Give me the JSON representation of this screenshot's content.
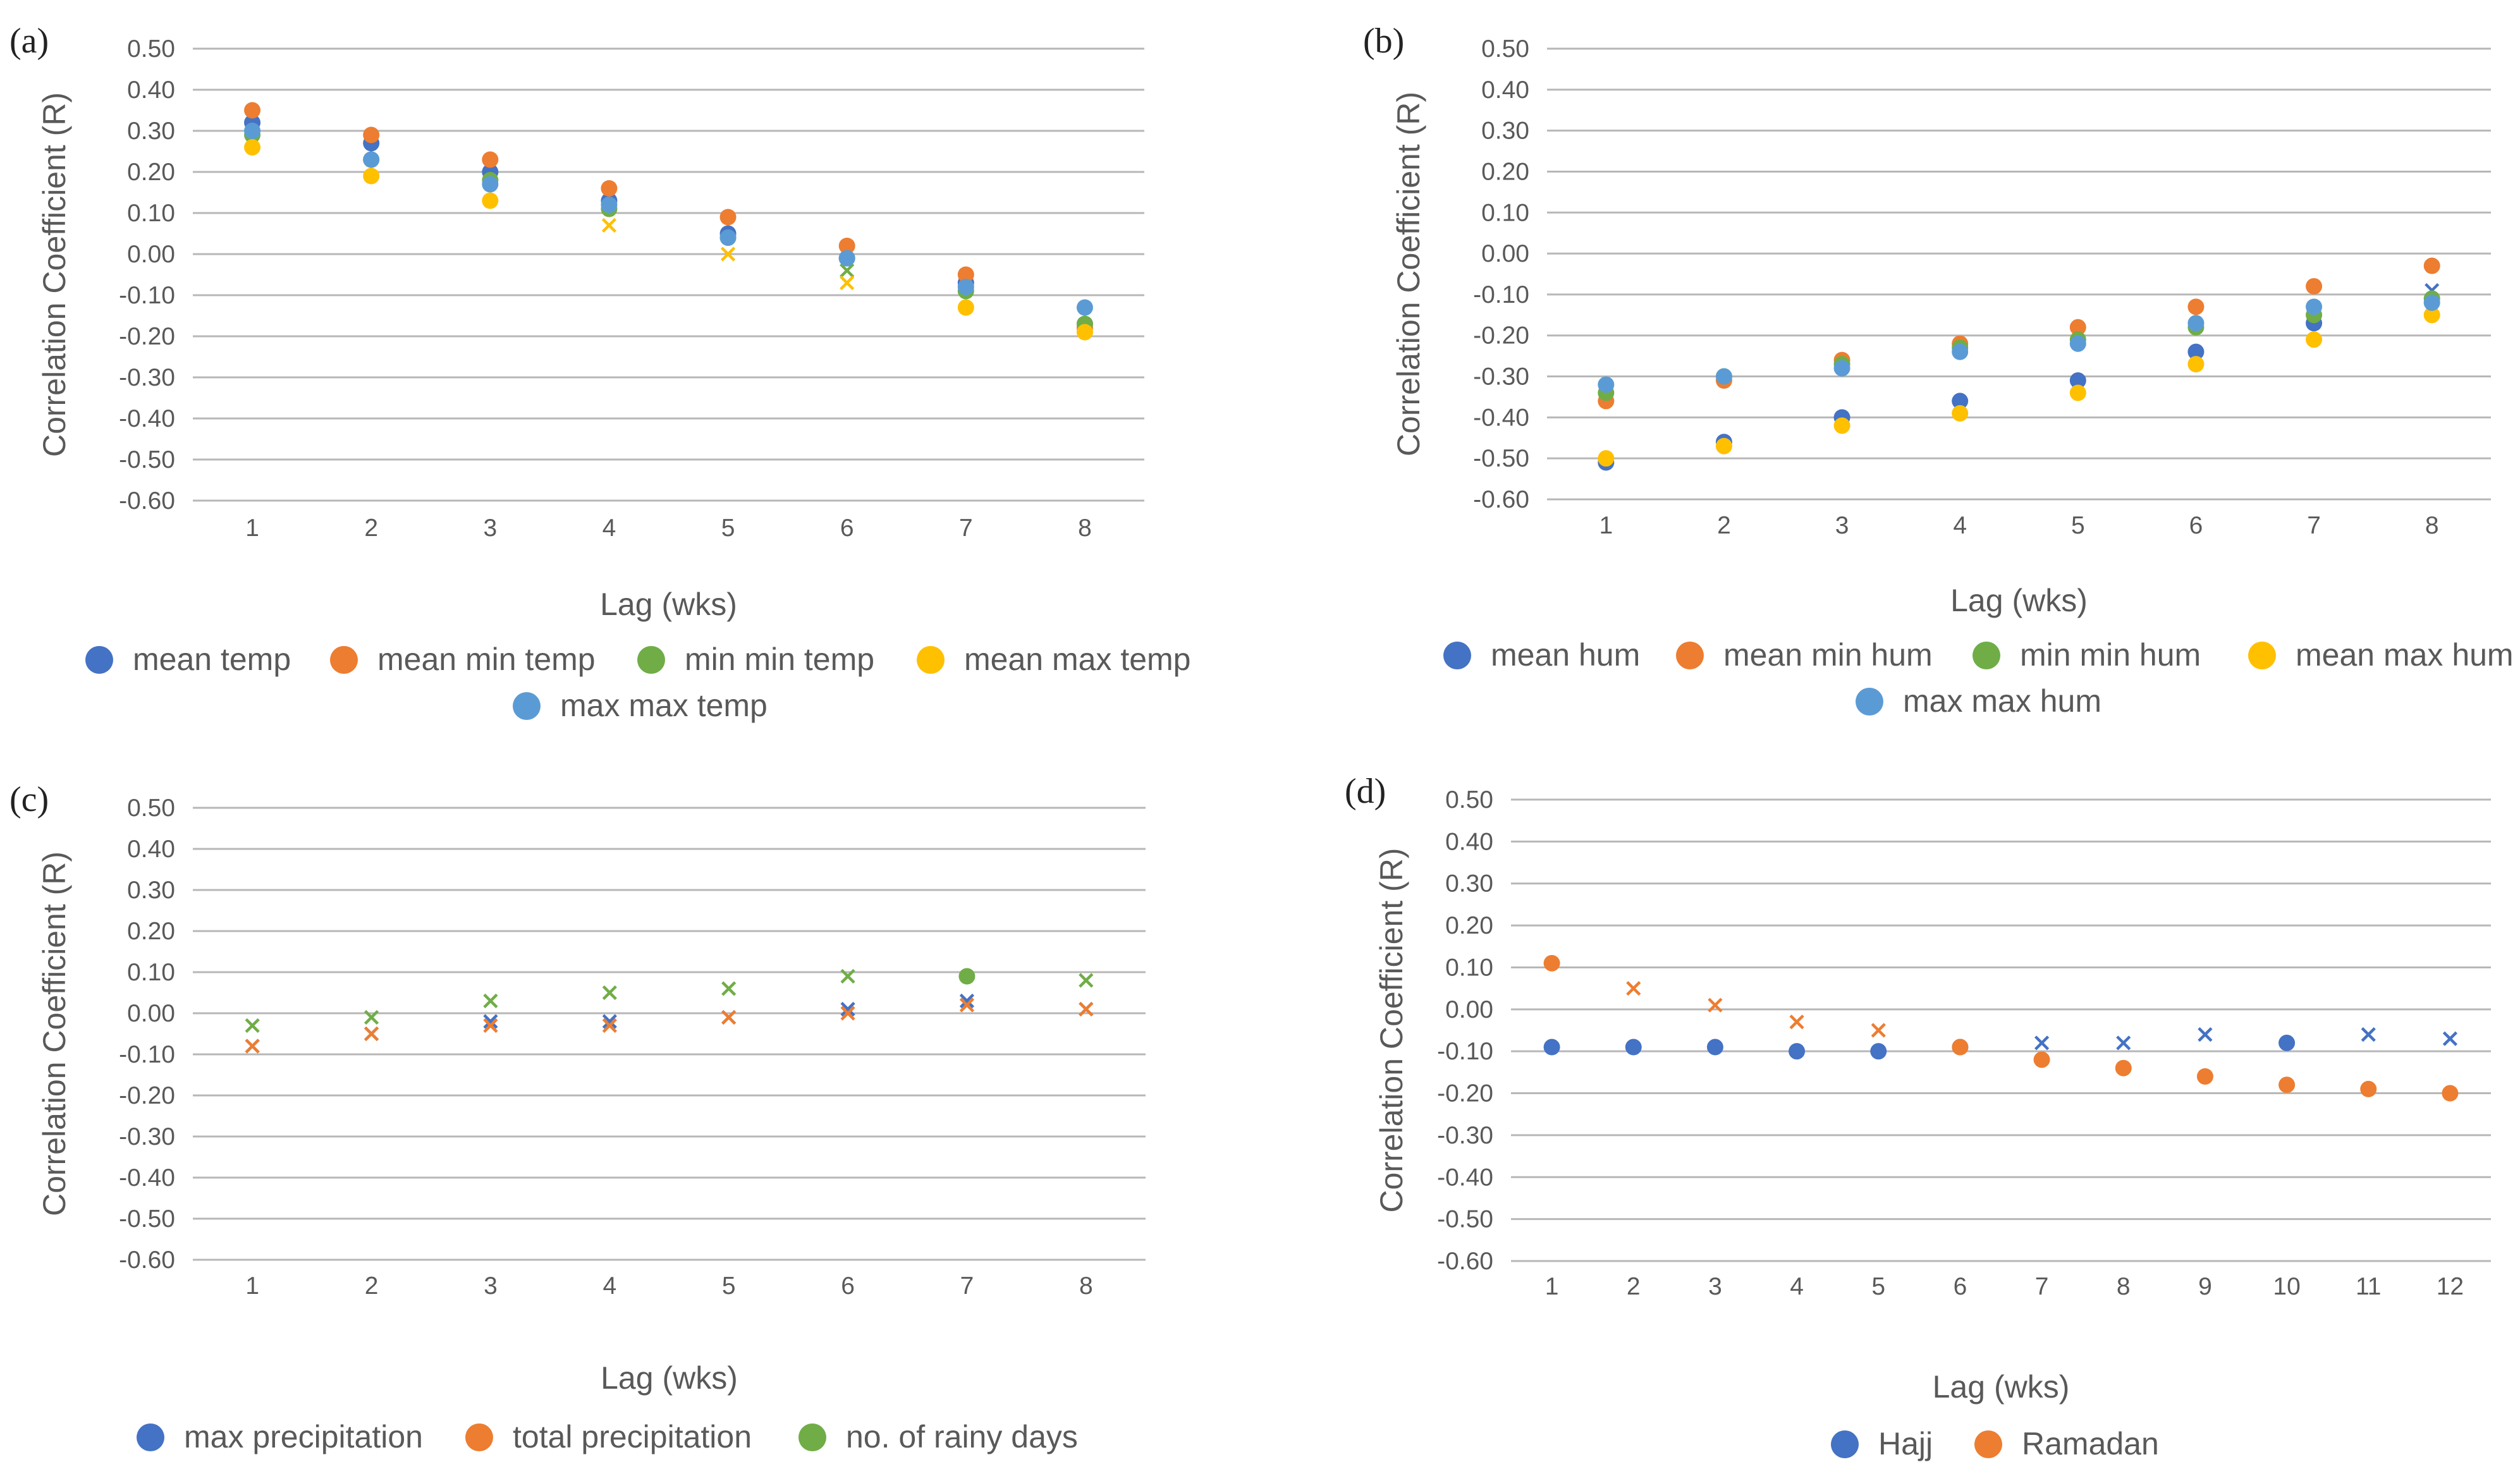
{
  "chart_data": [
    {
      "type": "scatter",
      "panel_label": "(a)",
      "xlabel": "Lag (wks)",
      "ylabel": "Correlation Coefficient (R)",
      "ylim": [
        -0.6,
        0.5
      ],
      "yticks": [
        "0.50",
        "0.40",
        "0.30",
        "0.20",
        "0.10",
        "0.00",
        "-0.10",
        "-0.20",
        "-0.30",
        "-0.40",
        "-0.50",
        "-0.60"
      ],
      "x": [
        1,
        2,
        3,
        4,
        5,
        6,
        7,
        8
      ],
      "series": [
        {
          "name": "mean temp",
          "color": "#4472c4",
          "values": [
            0.32,
            0.27,
            0.2,
            0.13,
            0.05,
            -0.01,
            -0.07,
            -0.17
          ],
          "markers": [
            "dot",
            "dot",
            "dot",
            "dot",
            "dot",
            "dot",
            "dot",
            "dot"
          ]
        },
        {
          "name": "mean min temp",
          "color": "#ed7d31",
          "values": [
            0.35,
            0.29,
            0.23,
            0.16,
            0.09,
            0.02,
            -0.05,
            -0.18
          ],
          "markers": [
            "dot",
            "dot",
            "dot",
            "dot",
            "dot",
            "dot",
            "dot",
            "dot"
          ]
        },
        {
          "name": "min min temp",
          "color": "#70ad47",
          "values": [
            0.29,
            0.23,
            0.18,
            0.11,
            0.04,
            -0.04,
            -0.09,
            -0.17
          ],
          "markers": [
            "dot",
            "dot",
            "dot",
            "dot",
            "dot",
            "cross",
            "dot",
            "dot"
          ]
        },
        {
          "name": "mean max temp",
          "color": "#ffc000",
          "values": [
            0.26,
            0.19,
            0.13,
            0.07,
            0.0,
            -0.07,
            -0.13,
            -0.19
          ],
          "markers": [
            "dot",
            "dot",
            "dot",
            "cross",
            "cross",
            "cross",
            "dot",
            "dot"
          ]
        },
        {
          "name": "max max temp",
          "color": "#5b9bd5",
          "values": [
            0.3,
            0.23,
            0.17,
            0.12,
            0.04,
            -0.01,
            -0.08,
            -0.13
          ],
          "markers": [
            "dot",
            "dot",
            "dot",
            "dot",
            "dot",
            "dot",
            "dot",
            "dot"
          ]
        }
      ]
    },
    {
      "type": "scatter",
      "panel_label": "(b)",
      "xlabel": "Lag (wks)",
      "ylabel": "Correlation Coefficient (R)",
      "ylim": [
        -0.6,
        0.5
      ],
      "yticks": [
        "0.50",
        "0.40",
        "0.30",
        "0.20",
        "0.10",
        "0.00",
        "-0.10",
        "-0.20",
        "-0.30",
        "-0.40",
        "-0.50",
        "-0.60"
      ],
      "x": [
        1,
        2,
        3,
        4,
        5,
        6,
        7,
        8
      ],
      "series": [
        {
          "name": "mean hum",
          "color": "#4472c4",
          "values": [
            -0.51,
            -0.46,
            -0.4,
            -0.36,
            -0.31,
            -0.24,
            -0.17,
            -0.09
          ],
          "markers": [
            "dot",
            "dot",
            "dot",
            "dot",
            "dot",
            "dot",
            "dot",
            "cross"
          ]
        },
        {
          "name": "mean min hum",
          "color": "#ed7d31",
          "values": [
            -0.36,
            -0.31,
            -0.26,
            -0.22,
            -0.18,
            -0.13,
            -0.08,
            -0.03
          ],
          "markers": [
            "dot",
            "dot",
            "dot",
            "dot",
            "dot",
            "dot",
            "dot",
            "dot"
          ]
        },
        {
          "name": "min min hum",
          "color": "#70ad47",
          "values": [
            -0.34,
            -0.3,
            -0.27,
            -0.23,
            -0.21,
            -0.18,
            -0.15,
            -0.11
          ],
          "markers": [
            "dot",
            "dot",
            "dot",
            "dot",
            "dot",
            "dot",
            "dot",
            "dot"
          ]
        },
        {
          "name": "mean max hum",
          "color": "#ffc000",
          "values": [
            -0.5,
            -0.47,
            -0.42,
            -0.39,
            -0.34,
            -0.27,
            -0.21,
            -0.15
          ],
          "markers": [
            "dot",
            "dot",
            "dot",
            "dot",
            "dot",
            "dot",
            "dot",
            "dot"
          ]
        },
        {
          "name": "max max hum",
          "color": "#5b9bd5",
          "values": [
            -0.32,
            -0.3,
            -0.28,
            -0.24,
            -0.22,
            -0.17,
            -0.13,
            -0.12
          ],
          "markers": [
            "dot",
            "dot",
            "dot",
            "dot",
            "dot",
            "dot",
            "dot",
            "dot"
          ]
        }
      ]
    },
    {
      "type": "scatter",
      "panel_label": "(c)",
      "xlabel": "Lag (wks)",
      "ylabel": "Correlation Coefficient (R)",
      "ylim": [
        -0.6,
        0.5
      ],
      "yticks": [
        "0.50",
        "0.40",
        "0.30",
        "0.20",
        "0.10",
        "0.00",
        "-0.10",
        "-0.20",
        "-0.30",
        "-0.40",
        "-0.50",
        "-0.60"
      ],
      "x": [
        1,
        2,
        3,
        4,
        5,
        6,
        7,
        8
      ],
      "series": [
        {
          "name": "max precipitation",
          "color": "#4472c4",
          "values": [
            -0.08,
            -0.05,
            -0.02,
            -0.02,
            -0.01,
            0.01,
            0.03,
            0.01
          ],
          "markers": [
            "cross",
            "cross",
            "cross",
            "cross",
            "cross",
            "cross",
            "cross",
            "cross"
          ]
        },
        {
          "name": "total precipitation",
          "color": "#ed7d31",
          "values": [
            -0.08,
            -0.05,
            -0.03,
            -0.03,
            -0.01,
            0.0,
            0.02,
            0.01
          ],
          "markers": [
            "cross",
            "cross",
            "cross",
            "cross",
            "cross",
            "cross",
            "cross",
            "cross"
          ]
        },
        {
          "name": "no. of rainy days",
          "color": "#70ad47",
          "values": [
            -0.03,
            -0.01,
            0.03,
            0.05,
            0.06,
            0.09,
            0.09,
            0.08
          ],
          "markers": [
            "cross",
            "cross",
            "cross",
            "cross",
            "cross",
            "cross",
            "dot",
            "cross"
          ]
        }
      ]
    },
    {
      "type": "scatter",
      "panel_label": "(d)",
      "xlabel": "Lag (wks)",
      "ylabel": "Correlation Coefficient (R)",
      "ylim": [
        -0.6,
        0.5
      ],
      "yticks": [
        "0.50",
        "0.40",
        "0.30",
        "0.20",
        "0.10",
        "0.00",
        "-0.10",
        "-0.20",
        "-0.30",
        "-0.40",
        "-0.50",
        "-0.60"
      ],
      "x": [
        1,
        2,
        3,
        4,
        5,
        6,
        7,
        8,
        9,
        10,
        11,
        12
      ],
      "series": [
        {
          "name": "Hajj",
          "color": "#4472c4",
          "values": [
            -0.09,
            -0.09,
            -0.09,
            -0.1,
            -0.1,
            -0.09,
            -0.08,
            -0.08,
            -0.06,
            -0.08,
            -0.06,
            -0.07
          ],
          "markers": [
            "dot",
            "dot",
            "dot",
            "dot",
            "dot",
            "dot",
            "cross",
            "cross",
            "cross",
            "dot",
            "cross",
            "cross"
          ]
        },
        {
          "name": "Ramadan",
          "color": "#ed7d31",
          "values": [
            0.11,
            0.05,
            0.01,
            -0.03,
            -0.05,
            -0.09,
            -0.12,
            -0.14,
            -0.16,
            -0.18,
            -0.19,
            -0.2
          ],
          "markers": [
            "dot",
            "cross",
            "cross",
            "cross",
            "cross",
            "dot",
            "dot",
            "dot",
            "dot",
            "dot",
            "dot",
            "dot"
          ]
        }
      ]
    }
  ]
}
